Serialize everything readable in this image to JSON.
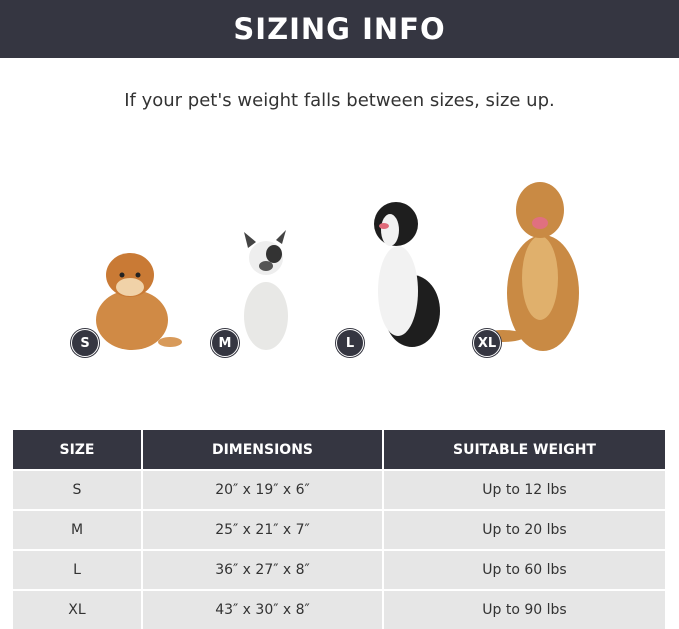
{
  "banner": {
    "title": "SIZING INFO"
  },
  "subtitle": "If your pet's weight falls between sizes, size up.",
  "dogs": [
    {
      "badge": "S",
      "breed_icon": "pomeranian"
    },
    {
      "badge": "M",
      "breed_icon": "french-bulldog"
    },
    {
      "badge": "L",
      "breed_icon": "border-collie"
    },
    {
      "badge": "XL",
      "breed_icon": "golden-retriever"
    }
  ],
  "table": {
    "headers": [
      "SIZE",
      "DIMENSIONS",
      "SUITABLE WEIGHT"
    ],
    "rows": [
      [
        "S",
        "20″ x 19″ x 6″",
        "Up to 12 lbs"
      ],
      [
        "M",
        "25″ x 21″ x 7″",
        "Up to 20 lbs"
      ],
      [
        "L",
        "36″ x 27″ x 8″",
        "Up to 60 lbs"
      ],
      [
        "XL",
        "43″ x 30″ x 8″",
        "Up to 90 lbs"
      ]
    ]
  },
  "colors": {
    "dark": "#353641",
    "row": "#e6e6e6"
  }
}
